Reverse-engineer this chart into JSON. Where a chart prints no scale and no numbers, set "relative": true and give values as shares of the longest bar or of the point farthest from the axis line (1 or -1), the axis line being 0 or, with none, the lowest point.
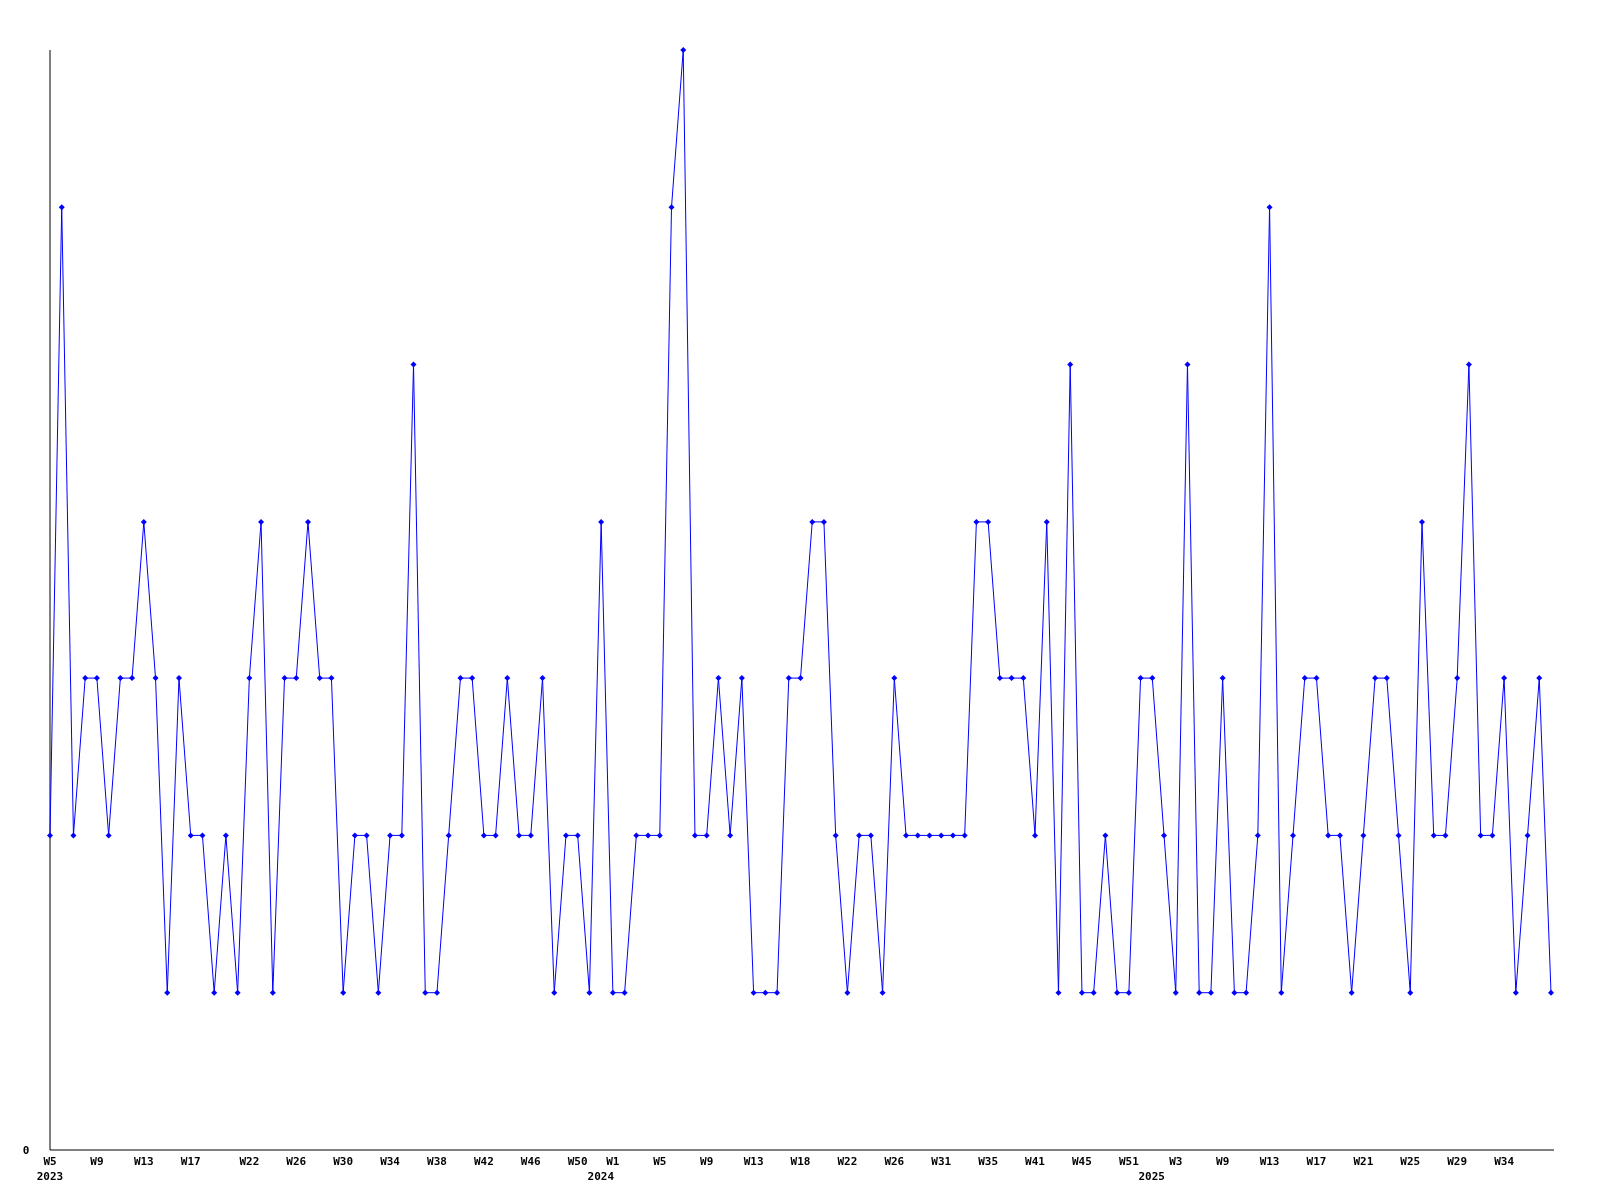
{
  "chart_data": {
    "type": "line",
    "relative": true,
    "marker": "diamond",
    "annotations": [
      "0",
      "2023",
      "2024",
      "2025"
    ],
    "categories": [
      "W5",
      null,
      null,
      null,
      "W9",
      null,
      null,
      null,
      "W13",
      null,
      null,
      null,
      "W17",
      null,
      null,
      null,
      null,
      "W22",
      null,
      null,
      null,
      "W26",
      null,
      null,
      null,
      "W30",
      null,
      null,
      null,
      "W34",
      null,
      null,
      null,
      "W38",
      null,
      null,
      null,
      "W42",
      null,
      null,
      null,
      "W46",
      null,
      null,
      null,
      "W50",
      null,
      null,
      "W1",
      null,
      null,
      null,
      "W5",
      null,
      null,
      null,
      "W9",
      null,
      null,
      null,
      "W13",
      null,
      null,
      null,
      "W18",
      null,
      null,
      null,
      "W22",
      null,
      null,
      null,
      "W26",
      null,
      null,
      null,
      "W31",
      null,
      null,
      null,
      "W35",
      null,
      null,
      null,
      "W41",
      null,
      null,
      null,
      "W45",
      null,
      null,
      null,
      "W51",
      null,
      null,
      null,
      "W3",
      null,
      null,
      null,
      "W9",
      null,
      null,
      null,
      "W13",
      null,
      null,
      null,
      "W17",
      null,
      null,
      null,
      "W21",
      null,
      null,
      null,
      "W25",
      null,
      null,
      null,
      "W29",
      null,
      null,
      null,
      "W34",
      null,
      null,
      null,
      null
    ],
    "series": [
      {
        "color": "#0000ff",
        "values": [
          0.286,
          0.857,
          0.286,
          0.429,
          0.429,
          0.286,
          0.429,
          0.429,
          0.571,
          0.429,
          0.143,
          0.429,
          0.286,
          0.286,
          0.143,
          0.286,
          0.143,
          0.429,
          0.571,
          0.143,
          0.429,
          0.429,
          0.571,
          0.429,
          0.429,
          0.143,
          0.286,
          0.286,
          0.143,
          0.286,
          0.286,
          0.714,
          0.143,
          0.143,
          0.286,
          0.429,
          0.429,
          0.286,
          0.286,
          0.429,
          0.286,
          0.286,
          0.429,
          0.143,
          0.286,
          0.286,
          0.143,
          0.571,
          0.143,
          0.143,
          0.286,
          0.286,
          0.286,
          0.857,
          1,
          0.286,
          0.286,
          0.429,
          0.286,
          0.429,
          0.143,
          0.143,
          0.143,
          0.429,
          0.429,
          0.571,
          0.571,
          0.286,
          0.143,
          0.286,
          0.286,
          0.143,
          0.429,
          0.286,
          0.286,
          0.286,
          0.286,
          0.286,
          0.286,
          0.571,
          0.571,
          0.429,
          0.429,
          0.429,
          0.286,
          0.571,
          0.143,
          0.714,
          0.143,
          0.143,
          0.286,
          0.143,
          0.143,
          0.429,
          0.429,
          0.286,
          0.143,
          0.714,
          0.143,
          0.143,
          0.429,
          0.143,
          0.143,
          0.286,
          0.857,
          0.143,
          0.286,
          0.429,
          0.429,
          0.286,
          0.286,
          0.143,
          0.286,
          0.429,
          0.429,
          0.286,
          0.143,
          0.571,
          0.286,
          0.286,
          0.429,
          0.714,
          0.286,
          0.286,
          0.429,
          0.143,
          0.286,
          0.429,
          0.143
        ]
      }
    ]
  }
}
